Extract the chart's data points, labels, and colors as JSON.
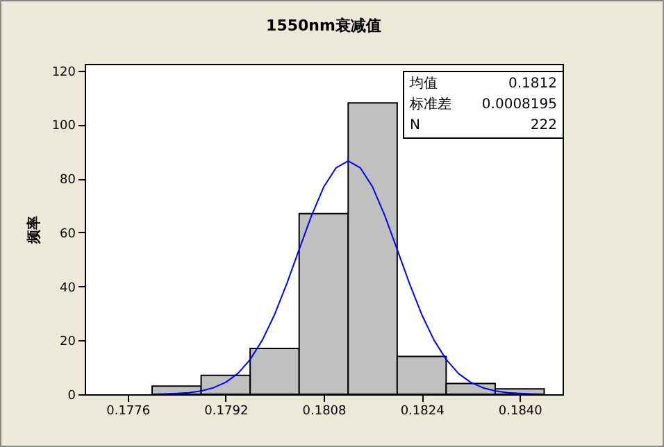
{
  "chart_data": {
    "type": "histogram",
    "title": "1550nm衰减值",
    "ylabel": "频率",
    "bins": [
      0.178,
      0.1788,
      0.1796,
      0.1804,
      0.1812,
      0.182,
      0.1828,
      0.1836,
      0.1844
    ],
    "values": [
      3,
      7,
      17,
      67,
      108,
      14,
      4,
      2
    ],
    "color": "#c0c0c0",
    "series": [
      {
        "type": "line",
        "color": "#0000ff",
        "x": [
          0.178,
          0.1782,
          0.1784,
          0.1786,
          0.1788,
          0.179,
          0.1792,
          0.1794,
          0.1796,
          0.1798,
          0.18,
          0.1802,
          0.1804,
          0.1806,
          0.1808,
          0.181,
          0.1812,
          0.1814,
          0.1816,
          0.1818,
          0.182,
          0.1822,
          0.1824,
          0.1826,
          0.1828,
          0.183,
          0.1832,
          0.1834,
          0.1836,
          0.1838,
          0.184,
          0.1842,
          0.1844
        ],
        "values": [
          0,
          0.1,
          0.3,
          0.6,
          1.2,
          2.4,
          4.4,
          7.7,
          12.9,
          20.1,
          29.6,
          41.1,
          53.7,
          66.1,
          76.8,
          83.9,
          86.5,
          83.9,
          76.8,
          66.1,
          53.7,
          41.1,
          29.6,
          20.1,
          12.9,
          7.7,
          4.4,
          2.4,
          1.2,
          0.6,
          0.3,
          0.1,
          0
        ]
      }
    ],
    "xlim": [
      0.1769,
      0.1847
    ],
    "xticks": [
      0.1776,
      0.1792,
      0.1808,
      0.1824,
      {
        "value": 0.184,
        "label": "0.1840"
      }
    ],
    "ylim": [
      0,
      122.5
    ],
    "yticks": [
      0,
      20,
      40,
      60,
      80,
      100,
      120
    ],
    "grid": false,
    "annotations": [
      "均值 0.1812",
      "标准差 0.0008195",
      "N 222"
    ]
  }
}
